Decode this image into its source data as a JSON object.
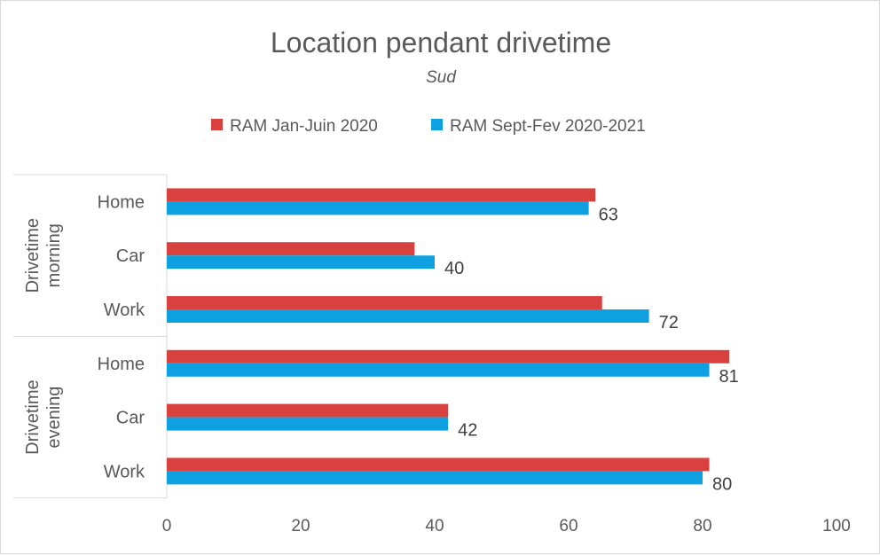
{
  "chart_data": {
    "type": "bar",
    "orientation": "horizontal",
    "title": "Location pendant drivetime",
    "subtitle": "Sud",
    "legend_position": "top",
    "xlim": [
      0,
      100
    ],
    "x_ticks": [
      "0",
      "20",
      "40",
      "60",
      "80",
      "100"
    ],
    "groups": [
      {
        "label": "Drivetime morning",
        "label_lines": [
          "Drivetime",
          "morning"
        ],
        "categories": [
          "Home",
          "Car",
          "Work"
        ]
      },
      {
        "label": "Drivetime evening",
        "label_lines": [
          "Drivetime",
          "evening"
        ],
        "categories": [
          "Home",
          "Car",
          "Work"
        ]
      }
    ],
    "series": [
      {
        "name": "RAM Jan-Juin 2020",
        "color": "#d9413f",
        "values": [
          64,
          37,
          65,
          84,
          42,
          81
        ]
      },
      {
        "name": "RAM Sept-Fev 2020-2021",
        "color": "#0ea0e0",
        "values": [
          63,
          40,
          72,
          81,
          42,
          80
        ],
        "data_labels": [
          "63",
          "40",
          "72",
          "81",
          "42",
          "80"
        ]
      }
    ]
  }
}
